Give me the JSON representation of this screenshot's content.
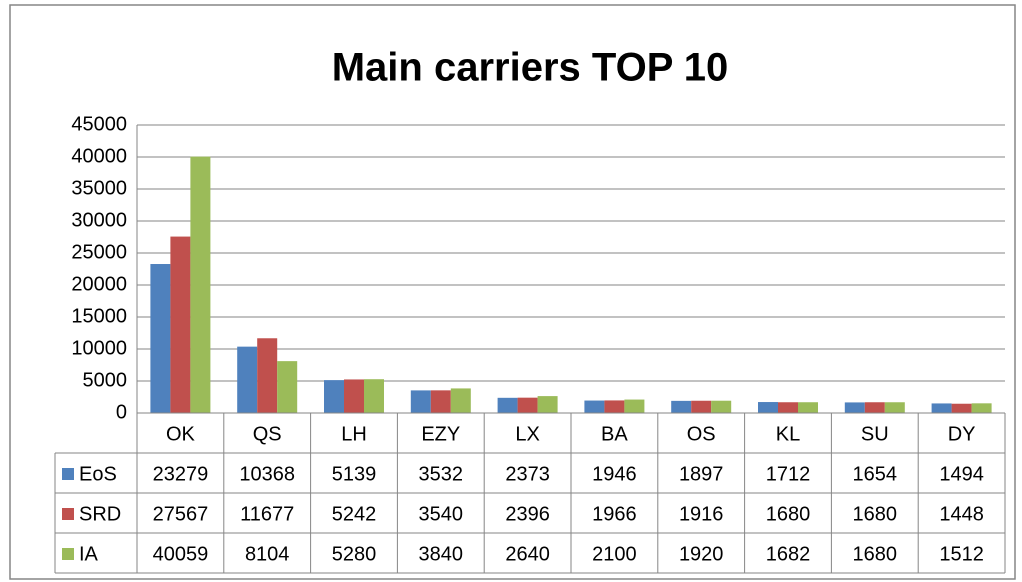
{
  "chart_data": {
    "type": "bar",
    "title": "Main carriers TOP 10",
    "categories": [
      "OK",
      "QS",
      "LH",
      "EZY",
      "LX",
      "BA",
      "OS",
      "KL",
      "SU",
      "DY"
    ],
    "series": [
      {
        "name": "EoS",
        "color": "#4f81bd",
        "values": [
          23279,
          10368,
          5139,
          3532,
          2373,
          1946,
          1897,
          1712,
          1654,
          1494
        ]
      },
      {
        "name": "SRD",
        "color": "#c0504d",
        "values": [
          27567,
          11677,
          5242,
          3540,
          2396,
          1966,
          1916,
          1680,
          1680,
          1448
        ]
      },
      {
        "name": "IA",
        "color": "#9bbb59",
        "values": [
          40059,
          8104,
          5280,
          3840,
          2640,
          2100,
          1920,
          1682,
          1680,
          1512
        ]
      }
    ],
    "ylim": [
      0,
      45000
    ],
    "yticks": [
      0,
      5000,
      10000,
      15000,
      20000,
      25000,
      30000,
      35000,
      40000,
      45000
    ],
    "grid": true,
    "data_table": true
  }
}
